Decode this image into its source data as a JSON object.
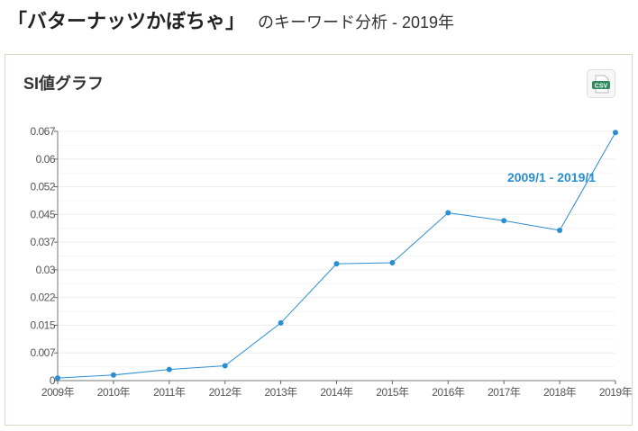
{
  "header": {
    "keyword": "「バターナッツかぼちゃ」",
    "subtitle": "のキーワード分析 - 2019年"
  },
  "card": {
    "title": "SI値グラフ",
    "csv_label": "CSV"
  },
  "colors": {
    "line": "#2a8fd0",
    "label": "#2a8fd0"
  },
  "chart_data": {
    "type": "line",
    "title": "SI値グラフ",
    "annotation": "2009/1 - 2019/1",
    "categories": [
      "2009年",
      "2010年",
      "2011年",
      "2012年",
      "2013年",
      "2014年",
      "2015年",
      "2016年",
      "2017年",
      "2018年",
      "2019年"
    ],
    "values": [
      0.0007,
      0.0015,
      0.003,
      0.004,
      0.0155,
      0.0314,
      0.0317,
      0.0451,
      0.043,
      0.0404,
      0.0667
    ],
    "yticks": [
      "0",
      "0.007",
      "0.015",
      "0.022",
      "0.03",
      "0.037",
      "0.045",
      "0.052",
      "0.06",
      "0.067"
    ],
    "ylim": [
      0,
      0.067
    ],
    "grid": true
  }
}
